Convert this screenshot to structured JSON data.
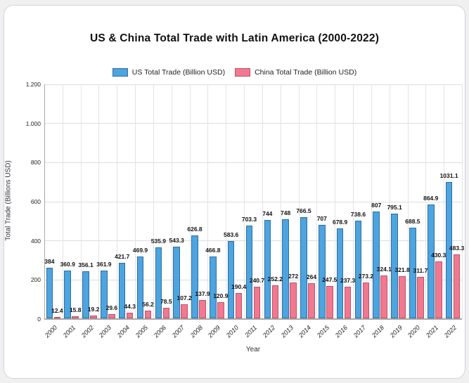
{
  "title": "US & China Total Trade with Latin America (2000-2022)",
  "axes": {
    "xlabel": "Year",
    "ylabel": "Total Trade (Billions USD)"
  },
  "legend": [
    {
      "label": "US Total Trade (Billion USD)",
      "color": "#4da4de",
      "border": "#2d6fa3"
    },
    {
      "label": "China Total Trade (Billion USD)",
      "color": "#f0798f",
      "border": "#c05069"
    }
  ],
  "chart_data": {
    "type": "bar",
    "title": "US & China Total Trade with Latin America (2000-2022)",
    "xlabel": "Year",
    "ylabel": "Total Trade (Billions USD)",
    "ylim": [
      0,
      1200
    ],
    "ytick_values": [
      0,
      200,
      400,
      600,
      800,
      1000,
      1200
    ],
    "ytick_labels": [
      "0",
      "200",
      "400",
      "600",
      "800",
      "1.000",
      "1.200"
    ],
    "grid": true,
    "legend_position": "top",
    "categories": [
      "2000",
      "2001",
      "2002",
      "2003",
      "2004",
      "2005",
      "2006",
      "2007",
      "2008",
      "2009",
      "2010",
      "2011",
      "2012",
      "2013",
      "2014",
      "2015",
      "2016",
      "2017",
      "2018",
      "2019",
      "2020",
      "2021",
      "2022"
    ],
    "series": [
      {
        "name": "US Total Trade (Billion USD)",
        "color": "#4da4de",
        "border": "#2d6fa3",
        "values": [
          384,
          360.9,
          356.1,
          361.9,
          421.7,
          469.9,
          535.9,
          543.3,
          626.8,
          466.8,
          583.6,
          703.3,
          744,
          748,
          766.5,
          707,
          678.9,
          738.6,
          807,
          795.1,
          688.5,
          864.9,
          1031.1
        ]
      },
      {
        "name": "China Total Trade (Billion USD)",
        "color": "#f0798f",
        "border": "#c05069",
        "values": [
          12.4,
          15.8,
          19.2,
          29.6,
          44.3,
          56.2,
          78.5,
          107.2,
          137.9,
          120.9,
          190.4,
          240.7,
          252.2,
          272,
          264,
          247.5,
          237.3,
          273.2,
          324.1,
          321.8,
          311.7,
          430.3,
          483.3
        ]
      }
    ]
  }
}
